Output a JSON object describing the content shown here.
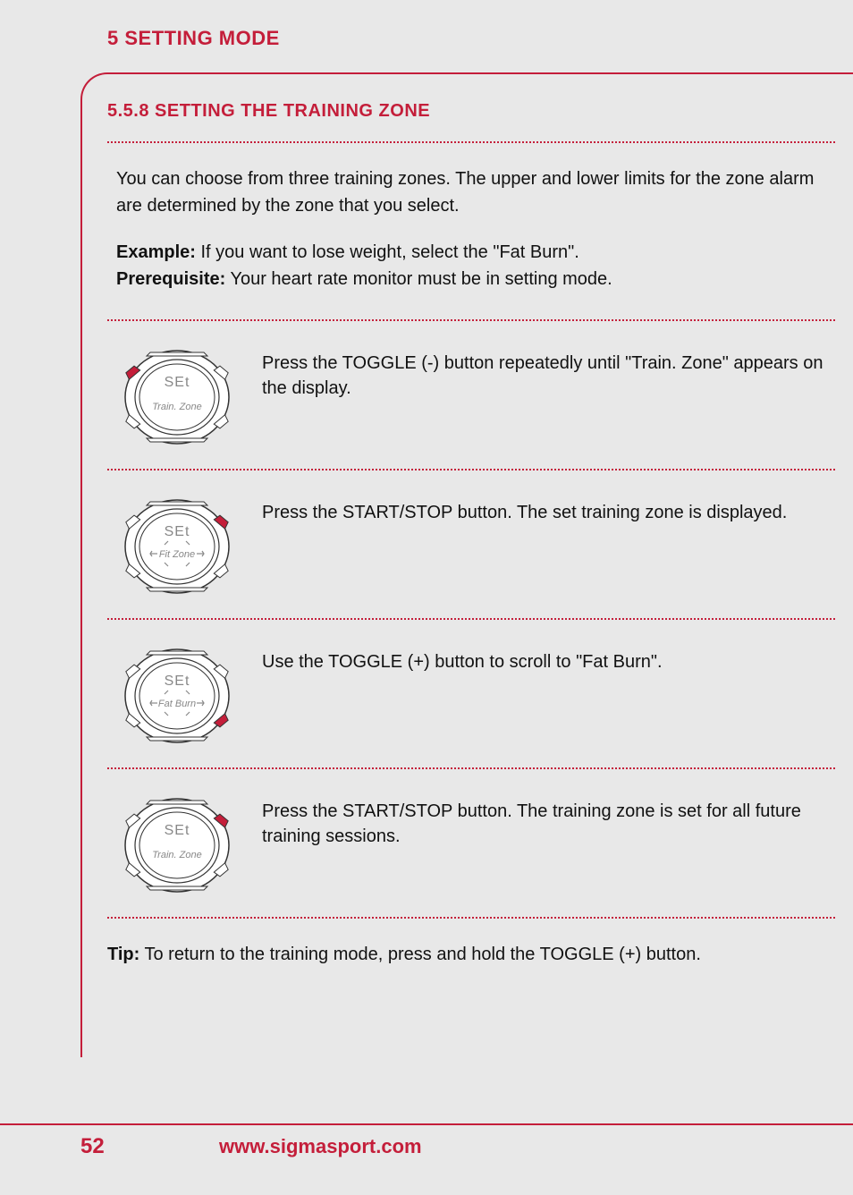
{
  "header": {
    "title": "5 SETTING MODE"
  },
  "section": {
    "title": "5.5.8 SETTING THE TRAINING ZONE",
    "intro_p1": "You can choose from three training zones. The upper and lower limits for the zone alarm are determined by the zone that you select.",
    "example_label": "Example:",
    "example_text": " If you want to lose weight, select the \"Fat Burn\".",
    "prereq_label": "Prerequisite:",
    "prereq_text": " Your heart rate monitor must be in setting mode."
  },
  "steps": [
    {
      "display_top": "SEt",
      "display_bottom": "Train. Zone",
      "arrows": false,
      "button_highlight": "top-left",
      "text": "Press the TOGGLE (-) button repeatedly until \"Train. Zone\" appears on the display."
    },
    {
      "display_top": "SEt",
      "display_bottom": "Fit Zone",
      "arrows": true,
      "button_highlight": "top-right",
      "text": "Press the START/STOP button. The set training zone is displayed."
    },
    {
      "display_top": "SEt",
      "display_bottom": "Fat Burn",
      "arrows": true,
      "button_highlight": "bottom-right",
      "text": "Use the TOGGLE (+) button to scroll to \"Fat Burn\"."
    },
    {
      "display_top": "SEt",
      "display_bottom": "Train. Zone",
      "arrows": false,
      "button_highlight": "top-right",
      "text": "Press the START/STOP button. The training zone is set for all future training sessions."
    }
  ],
  "tip_label": "Tip:",
  "tip_text": " To return to the training mode, press and hold the TOGGLE (+) button.",
  "footer": {
    "page": "52",
    "url": "www.sigmasport.com"
  },
  "style": {
    "accent_color": "#c41e3a",
    "bg_color": "#e8e8e8",
    "text_color": "#111111",
    "watch_line_color": "#333333",
    "watch_display_color": "#888888",
    "highlight_color": "#c41e3a"
  }
}
